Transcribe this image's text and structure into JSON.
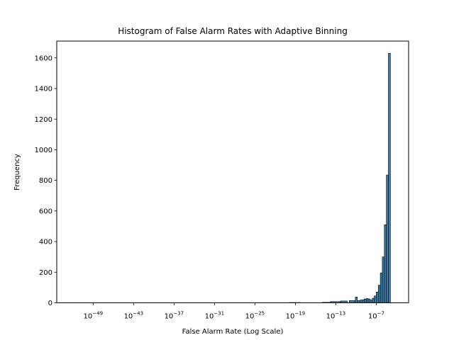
{
  "chart_data": {
    "type": "bar",
    "title": "Histogram of False Alarm Rates with Adaptive Binning",
    "xlabel": "False Alarm Rate (Log Scale)",
    "ylabel": "Frequency",
    "x_scale": "log10",
    "x_range_exponent": [
      -54.4,
      -2.2
    ],
    "ylim": [
      0,
      1710
    ],
    "x_ticks": [
      {
        "base": "10",
        "exp": "−49",
        "value_exp": -49
      },
      {
        "base": "10",
        "exp": "−43",
        "value_exp": -43
      },
      {
        "base": "10",
        "exp": "−37",
        "value_exp": -37
      },
      {
        "base": "10",
        "exp": "−31",
        "value_exp": -31
      },
      {
        "base": "10",
        "exp": "−25",
        "value_exp": -25
      },
      {
        "base": "10",
        "exp": "−19",
        "value_exp": -19
      },
      {
        "base": "10",
        "exp": "−13",
        "value_exp": -13
      },
      {
        "base": "10",
        "exp": "−7",
        "value_exp": -7
      }
    ],
    "y_ticks": [
      {
        "value": 0,
        "label": "0"
      },
      {
        "value": 200,
        "label": "200"
      },
      {
        "value": 400,
        "label": "400"
      },
      {
        "value": 600,
        "label": "600"
      },
      {
        "value": 800,
        "label": "800"
      },
      {
        "value": 1000,
        "label": "1000"
      },
      {
        "value": 1200,
        "label": "1200"
      },
      {
        "value": 1400,
        "label": "1400"
      },
      {
        "value": 1600,
        "label": "1600"
      }
    ],
    "bar_color": "#3a7ca5",
    "edge_color": "#000000",
    "bins": [
      {
        "from_exp": -52.0,
        "to_exp": -50.0,
        "value": 1
      },
      {
        "from_exp": -20.0,
        "to_exp": -18.2,
        "value": 2
      },
      {
        "from_exp": -17.6,
        "to_exp": -16.6,
        "value": 1
      },
      {
        "from_exp": -15.0,
        "to_exp": -13.8,
        "value": 3
      },
      {
        "from_exp": -13.8,
        "to_exp": -12.3,
        "value": 8
      },
      {
        "from_exp": -12.3,
        "to_exp": -11.3,
        "value": 12
      },
      {
        "from_exp": -11.0,
        "to_exp": -10.1,
        "value": 15
      },
      {
        "from_exp": -10.1,
        "to_exp": -9.8,
        "value": 38
      },
      {
        "from_exp": -9.8,
        "to_exp": -9.4,
        "value": 15
      },
      {
        "from_exp": -9.4,
        "to_exp": -9.1,
        "value": 18
      },
      {
        "from_exp": -9.1,
        "to_exp": -8.8,
        "value": 20
      },
      {
        "from_exp": -8.8,
        "to_exp": -8.5,
        "value": 25
      },
      {
        "from_exp": -8.5,
        "to_exp": -8.2,
        "value": 28
      },
      {
        "from_exp": -8.2,
        "to_exp": -7.9,
        "value": 25
      },
      {
        "from_exp": -7.9,
        "to_exp": -7.6,
        "value": 18
      },
      {
        "from_exp": -7.6,
        "to_exp": -7.3,
        "value": 30
      },
      {
        "from_exp": -7.3,
        "to_exp": -7.0,
        "value": 45
      },
      {
        "from_exp": -7.0,
        "to_exp": -6.7,
        "value": 70
      },
      {
        "from_exp": -6.7,
        "to_exp": -6.4,
        "value": 115
      },
      {
        "from_exp": -6.4,
        "to_exp": -6.1,
        "value": 195
      },
      {
        "from_exp": -6.1,
        "to_exp": -5.8,
        "value": 300
      },
      {
        "from_exp": -5.8,
        "to_exp": -5.5,
        "value": 510
      },
      {
        "from_exp": -5.5,
        "to_exp": -5.2,
        "value": 835
      },
      {
        "from_exp": -5.2,
        "to_exp": -4.9,
        "value": 1630
      }
    ]
  }
}
